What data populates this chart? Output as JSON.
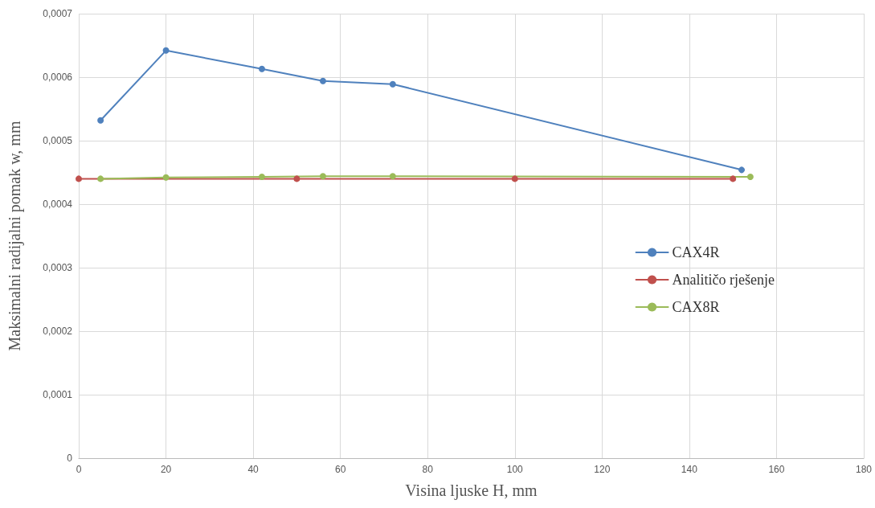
{
  "chart_data": {
    "type": "line",
    "xlabel": "Visina ljuske H, mm",
    "ylabel": "Maksimalni radijalni pomak w, mm",
    "xlim": [
      0,
      180
    ],
    "xticks": [
      0,
      20,
      40,
      60,
      80,
      100,
      120,
      140,
      160,
      180
    ],
    "ylim": [
      0,
      0.0007
    ],
    "yticks": [
      {
        "value": 0,
        "label": "0"
      },
      {
        "value": 0.0001,
        "label": "0,0001"
      },
      {
        "value": 0.0002,
        "label": "0,0002"
      },
      {
        "value": 0.0003,
        "label": "0,0003"
      },
      {
        "value": 0.0004,
        "label": "0,0004"
      },
      {
        "value": 0.0005,
        "label": "0,0005"
      },
      {
        "value": 0.0006,
        "label": "0,0006"
      },
      {
        "value": 0.0007,
        "label": "0,0007"
      }
    ],
    "grid": true,
    "legend": "right",
    "marker": "circle",
    "line_style": "solid",
    "series": [
      {
        "name": "CAX4R",
        "color": "#4f81bd",
        "x": [
          5,
          20,
          42,
          56,
          72,
          152
        ],
        "values": [
          0.000532,
          0.000642,
          0.000613,
          0.000594,
          0.000589,
          0.000454
        ]
      },
      {
        "name": "Analitičo rješenje",
        "color": "#c0504d",
        "x": [
          0,
          50,
          100,
          150
        ],
        "values": [
          0.00044,
          0.00044,
          0.00044,
          0.00044
        ]
      },
      {
        "name": "CAX8R",
        "color": "#9bbb59",
        "x": [
          5,
          20,
          42,
          56,
          72,
          154
        ],
        "values": [
          0.00044,
          0.000442,
          0.000443,
          0.000444,
          0.000444,
          0.000443
        ]
      }
    ]
  }
}
